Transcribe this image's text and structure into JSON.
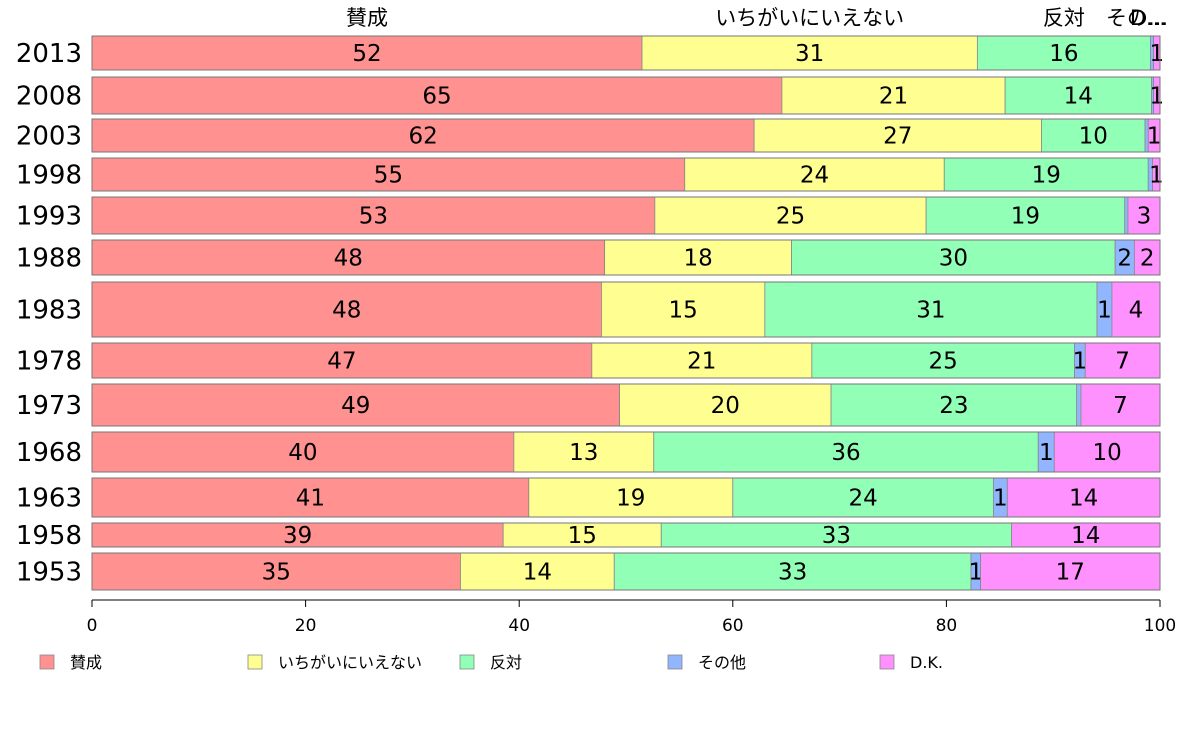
{
  "chart_data": {
    "type": "bar",
    "orientation": "horizontal",
    "stacked": true,
    "categories": [
      "2013",
      "2008",
      "2003",
      "1998",
      "1993",
      "1988",
      "1983",
      "1978",
      "1973",
      "1968",
      "1963",
      "1958",
      "1953"
    ],
    "series": [
      {
        "name": "賛成",
        "color": "#ff9191",
        "values": [
          51.5,
          64.6,
          62.0,
          55.5,
          52.7,
          48.0,
          47.7,
          46.8,
          49.4,
          39.5,
          40.9,
          38.5,
          34.5
        ]
      },
      {
        "name": "いちがいにいえない",
        "color": "#ffff91",
        "values": [
          31.4,
          20.9,
          26.9,
          24.3,
          25.4,
          17.5,
          15.3,
          20.6,
          19.8,
          13.1,
          19.1,
          14.8,
          14.4
        ]
      },
      {
        "name": "反対",
        "color": "#91ffb6",
        "values": [
          16.2,
          13.7,
          9.7,
          19.1,
          18.6,
          30.3,
          31.1,
          24.6,
          23.0,
          36.0,
          24.4,
          32.8,
          33.4
        ]
      },
      {
        "name": "その他",
        "color": "#91b6ff",
        "values": [
          0.3,
          0.2,
          0.3,
          0.4,
          0.3,
          1.8,
          1.4,
          1.0,
          0.4,
          1.5,
          1.3,
          0.0,
          0.9
        ]
      },
      {
        "name": "D.K.",
        "color": "#ff91ff",
        "values": [
          0.6,
          0.6,
          1.1,
          0.7,
          3.0,
          2.4,
          4.5,
          7.0,
          7.4,
          9.9,
          14.3,
          13.9,
          16.8
        ]
      }
    ],
    "segment_labels": [
      [
        "52",
        "31",
        "16",
        "",
        "1"
      ],
      [
        "65",
        "21",
        "14",
        "",
        "1"
      ],
      [
        "62",
        "27",
        "10",
        "",
        "1"
      ],
      [
        "55",
        "24",
        "19",
        "",
        "1"
      ],
      [
        "53",
        "25",
        "19",
        "",
        "3"
      ],
      [
        "48",
        "18",
        "30",
        "2",
        "2"
      ],
      [
        "48",
        "15",
        "31",
        "1",
        "4"
      ],
      [
        "47",
        "21",
        "25",
        "1",
        "7"
      ],
      [
        "49",
        "20",
        "23",
        "",
        "7"
      ],
      [
        "40",
        "13",
        "36",
        "1",
        "10"
      ],
      [
        "41",
        "19",
        "24",
        "1",
        "14"
      ],
      [
        "39",
        "15",
        "33",
        "",
        "14"
      ],
      [
        "35",
        "14",
        "33",
        "1",
        "17"
      ]
    ],
    "header_labels": [
      "賛成",
      "いちがいにいえない",
      "反対",
      "その...",
      "D..."
    ],
    "xlim": [
      0,
      100
    ],
    "xticks": [
      0,
      20,
      40,
      60,
      80,
      100
    ],
    "grid": false,
    "legend_position": "bottom"
  }
}
